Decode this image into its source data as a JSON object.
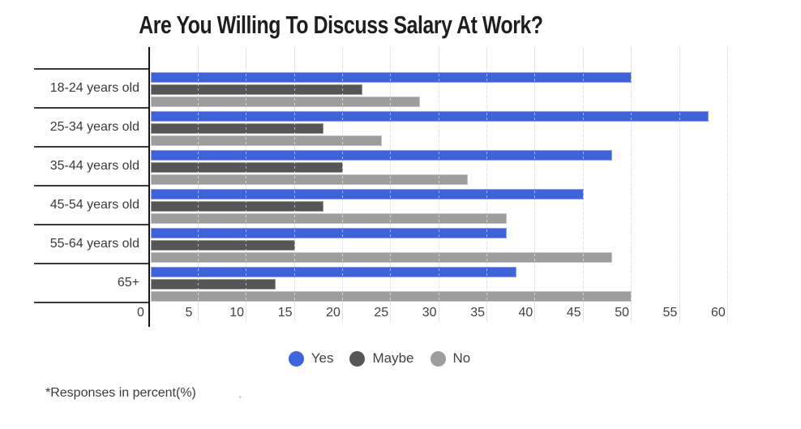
{
  "title": "Are You Willing To Discuss Salary At Work?",
  "footnote": "*Responses in percent(%)",
  "stray_mark": "'",
  "colors": {
    "yes": "#3c64dc",
    "maybe": "#565656",
    "no": "#9d9d9d",
    "axis_line": "#141414",
    "separator": "#3b3b3b",
    "gridline": "#e3e3e3",
    "tick_text": "#3f3f3f",
    "label_text": "#3a3a3a",
    "title_text": "#1e1e1e"
  },
  "chart_data": {
    "type": "bar",
    "orientation": "horizontal",
    "title": "Are You Willing To Discuss Salary At Work?",
    "categories": [
      "18-24 years old",
      "25-34 years old",
      "35-44 years old",
      "45-54 years old",
      "55-64 years old",
      "65+"
    ],
    "series": [
      {
        "name": "Yes",
        "color": "#3c64dc",
        "values": [
          50,
          58,
          48,
          45,
          37,
          38
        ]
      },
      {
        "name": "Maybe",
        "color": "#565656",
        "values": [
          22,
          18,
          20,
          18,
          15,
          13
        ]
      },
      {
        "name": "No",
        "color": "#9d9d9d",
        "values": [
          28,
          24,
          33,
          37,
          48,
          50
        ]
      }
    ],
    "xlabel": "",
    "ylabel": "",
    "x_ticks": [
      0,
      5,
      10,
      15,
      20,
      25,
      30,
      35,
      40,
      45,
      50,
      55,
      60
    ],
    "xlim": [
      0,
      63
    ],
    "grid": true,
    "legend_position": "bottom",
    "units": "percent",
    "note": "*Responses in percent(%)"
  }
}
